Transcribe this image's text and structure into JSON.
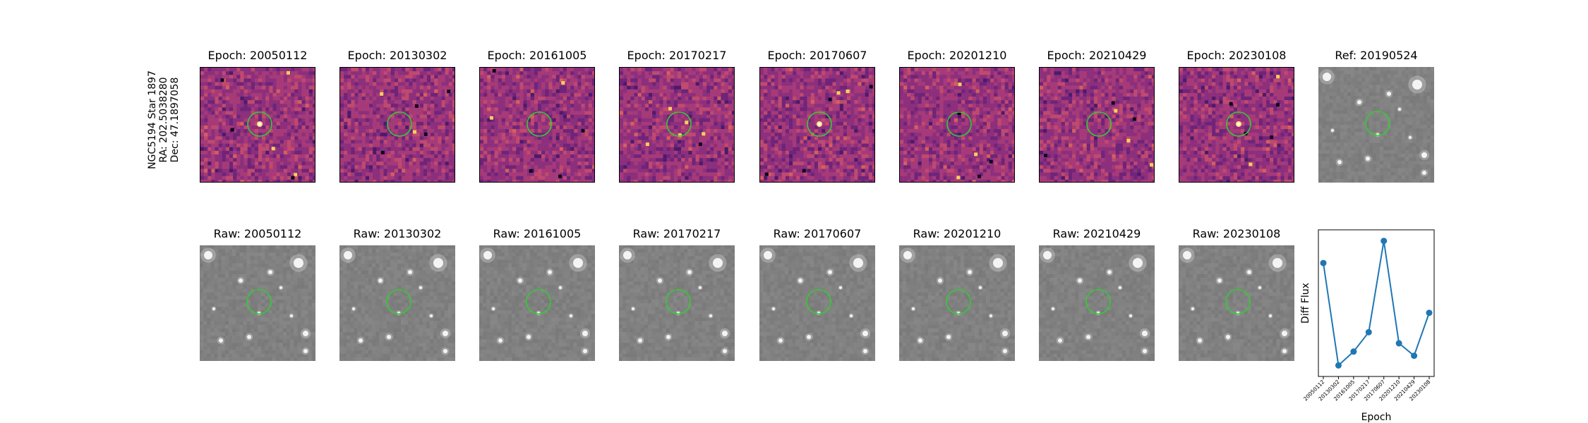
{
  "target": {
    "name": "NGC5194 Star 1897",
    "ra": "RA: 202.5038280",
    "dec": "Dec: 47.1897058"
  },
  "difference_panels": [
    {
      "title": "Epoch: 20050112"
    },
    {
      "title": "Epoch: 20130302"
    },
    {
      "title": "Epoch: 20161005"
    },
    {
      "title": "Epoch: 20170217"
    },
    {
      "title": "Epoch: 20170607"
    },
    {
      "title": "Epoch: 20201210"
    },
    {
      "title": "Epoch: 20210429"
    },
    {
      "title": "Epoch: 20230108"
    }
  ],
  "reference_panel": {
    "title": "Ref: 20190524"
  },
  "raw_panels": [
    {
      "title": "Raw: 20050112"
    },
    {
      "title": "Raw: 20130302"
    },
    {
      "title": "Raw: 20161005"
    },
    {
      "title": "Raw: 20170217"
    },
    {
      "title": "Raw: 20170607"
    },
    {
      "title": "Raw: 20201210"
    },
    {
      "title": "Raw: 20210429"
    },
    {
      "title": "Raw: 20230108"
    }
  ],
  "colors": {
    "aperture": "#33cc33",
    "line": "#1f77b4",
    "diff_base": "#9c3f7a",
    "raw_base": "#8a8a8a"
  },
  "chart_data": {
    "type": "line",
    "title": "",
    "xlabel": "Epoch",
    "ylabel": "Diff Flux",
    "categories": [
      "20050112",
      "20130302",
      "20161005",
      "20170217",
      "20170607",
      "20201210",
      "20210429",
      "20230108"
    ],
    "values": [
      0.74,
      0.0,
      0.1,
      0.24,
      0.9,
      0.16,
      0.07,
      0.38
    ],
    "ylim": [
      -0.08,
      0.98
    ],
    "y_ticks_shown": false,
    "grid": false,
    "legend": "none"
  }
}
